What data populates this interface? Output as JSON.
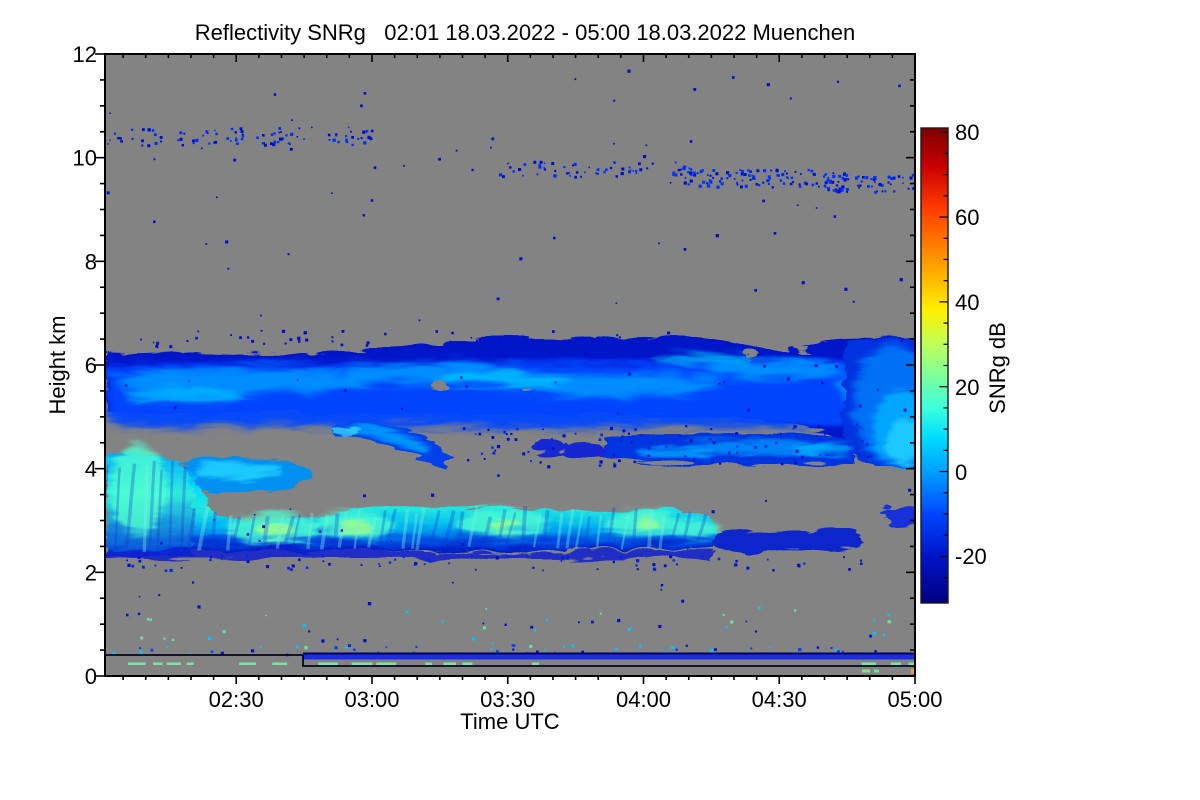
{
  "chart_data": {
    "type": "heatmap",
    "title": "Reflectivity SNRg   02:01 18.03.2022 - 05:00 18.03.2022 Muenchen",
    "instrument_quantity": "Reflectivity SNRg",
    "station": "Muenchen",
    "date": "18.03.2022",
    "time_start": "02:01",
    "time_end": "05:00",
    "xlabel": "Time UTC",
    "ylabel": "Height km",
    "xticks": [
      "02:30",
      "03:00",
      "03:30",
      "04:00",
      "04:30",
      "05:00"
    ],
    "yticks": [
      "12",
      "10",
      "8",
      "6",
      "4",
      "2",
      "0"
    ],
    "ylim": [
      0,
      12
    ],
    "grid": false,
    "no_data_color": "#838383",
    "colorbar": {
      "label": "SNRg dB",
      "ticks": [
        "80",
        "60",
        "40",
        "20",
        "0",
        "-20"
      ],
      "tick_values": [
        80,
        60,
        40,
        20,
        0,
        -20
      ],
      "min": -31,
      "max": 81,
      "stops": [
        [
          81,
          "#7d0000"
        ],
        [
          72,
          "#c80000"
        ],
        [
          62,
          "#ff3c00"
        ],
        [
          50,
          "#ff9600"
        ],
        [
          38,
          "#fff000"
        ],
        [
          30,
          "#beff5a"
        ],
        [
          22,
          "#78ffa0"
        ],
        [
          15,
          "#3cffdc"
        ],
        [
          8,
          "#00dcff"
        ],
        [
          0,
          "#00a0ff"
        ],
        [
          -10,
          "#0046ff"
        ],
        [
          -20,
          "#0014c8"
        ],
        [
          -31,
          "#000082"
        ]
      ]
    },
    "layers": [
      {
        "name": "cirrus_speckles",
        "time": [
          "02:01",
          "03:00"
        ],
        "height_km": [
          10.25,
          10.6
        ],
        "snr_db": -25,
        "form": "scattered specks"
      },
      {
        "name": "cirrus_trail",
        "time": [
          "03:28",
          "05:00"
        ],
        "height_km": [
          9.3,
          9.95
        ],
        "snr_db": -25,
        "form": "descending speckle trail, denser 04:10-04:45"
      },
      {
        "name": "upper_cloud_band",
        "time": [
          "02:01",
          "05:00"
        ],
        "height_km": [
          5.1,
          6.55
        ],
        "snr_db_core": 0,
        "snr_db_edge": -22,
        "form": "continuous layer, lighter blue core streaks"
      },
      {
        "name": "right_merge_region",
        "time": [
          "04:44",
          "05:00"
        ],
        "height_km": [
          4.4,
          6.5
        ],
        "snr_db": 4,
        "form": "bright region where upper band merges with mid layer"
      },
      {
        "name": "left_mid_patch",
        "time": [
          "02:14",
          "02:46"
        ],
        "height_km": [
          3.95,
          4.35
        ],
        "snr_db": 5,
        "form": "cyan patch"
      },
      {
        "name": "sloping_virga",
        "time": [
          "02:51",
          "03:18"
        ],
        "height_km": [
          4.1,
          4.95
        ],
        "snr_db": -8,
        "form": "wisp sloping down toward the right"
      },
      {
        "name": "mid_blobs",
        "time": [
          "03:30",
          "03:55"
        ],
        "height_km": [
          4.2,
          4.6
        ],
        "snr_db": -18,
        "form": "small detached blobs"
      },
      {
        "name": "mid_band",
        "time": [
          "03:53",
          "04:46"
        ],
        "height_km": [
          4.2,
          4.7
        ],
        "snr_db": -10,
        "form": "ragged band with lighter wisps"
      },
      {
        "name": "lower_band_bright",
        "time": [
          "02:01",
          "04:15"
        ],
        "height_km": [
          2.35,
          3.4
        ],
        "snr_db_core": 12,
        "snr_db_max": 28,
        "form": "bright cyan band with fall streaks; yellow-green maxima near 02:37, 02:56, 03:28, 04:00"
      },
      {
        "name": "lower_left_wall",
        "time": [
          "02:01",
          "02:19"
        ],
        "height_km": [
          2.6,
          4.3
        ],
        "snr_db": 12,
        "form": "bright cyan column at left edge"
      },
      {
        "name": "lower_band_weak",
        "time": [
          "04:15",
          "04:47"
        ],
        "height_km": [
          2.5,
          2.95
        ],
        "snr_db": -18,
        "form": "weak speckled continuation"
      },
      {
        "name": "right_low_blob",
        "time": [
          "04:55",
          "05:00"
        ],
        "height_km": [
          2.95,
          3.35
        ],
        "snr_db": -18,
        "form": "small blob at right edge"
      }
    ],
    "surface": {
      "black_step_line": {
        "km_before": 0.4,
        "km_after": 0.19,
        "step_time": "02:45"
      },
      "blue_layer": {
        "time": [
          "02:45",
          "05:00"
        ],
        "height_km": [
          0.3,
          0.42
        ],
        "snr_db": -15
      },
      "green_dashes": {
        "height_km": 0.25,
        "snr_db": 18,
        "form": "intermittent bright dashes"
      },
      "low_specks": {
        "height_km": [
          0.42,
          0.62
        ],
        "form": "sparse blue/cyan dots"
      }
    },
    "speckle_fields": [
      {
        "t": [
          "02:01",
          "03:00"
        ],
        "km": [
          10.25,
          10.6
        ],
        "n": 90,
        "palette": [
          "#0010c8",
          "#0030ff"
        ]
      },
      {
        "t": [
          "03:28",
          "04:12"
        ],
        "km": [
          9.65,
          9.95
        ],
        "n": 55,
        "palette": [
          "#0010c8",
          "#0030ff"
        ]
      },
      {
        "t": [
          "04:05",
          "04:45"
        ],
        "km": [
          9.45,
          9.8
        ],
        "n": 110,
        "palette": [
          "#0010c8",
          "#0030ff"
        ]
      },
      {
        "t": [
          "04:40",
          "05:00"
        ],
        "km": [
          9.35,
          9.7
        ],
        "n": 60,
        "palette": [
          "#0010c8",
          "#0030ff"
        ]
      },
      {
        "t": [
          "02:01",
          "05:00"
        ],
        "km": [
          0.7,
          11.9
        ],
        "n": 140,
        "palette": [
          "#0010c8"
        ]
      },
      {
        "t": [
          "02:01",
          "04:50"
        ],
        "km": [
          2.05,
          2.35
        ],
        "n": 70,
        "palette": [
          "#0010c8",
          "#0028e8"
        ]
      },
      {
        "t": [
          "03:20",
          "04:50"
        ],
        "km": [
          4.05,
          4.85
        ],
        "n": 90,
        "palette": [
          "#0010c8",
          "#0028e8"
        ]
      },
      {
        "t": [
          "02:01",
          "05:00"
        ],
        "km": [
          0.55,
          1.35
        ],
        "n": 45,
        "palette": [
          "#0010c8",
          "#00c8ff",
          "#64e6a0"
        ]
      },
      {
        "t": [
          "02:10",
          "03:40"
        ],
        "km": [
          6.35,
          6.7
        ],
        "n": 40,
        "palette": [
          "#0010c8"
        ]
      },
      {
        "t": [
          "02:01",
          "05:00"
        ],
        "km": [
          0.42,
          0.62
        ],
        "n": 55,
        "palette": [
          "#0010c8",
          "#0040ff",
          "#00c8ff"
        ]
      }
    ]
  }
}
